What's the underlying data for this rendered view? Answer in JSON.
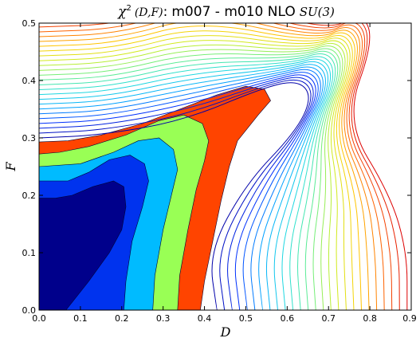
{
  "chart_data": {
    "type": "contour",
    "title": {
      "chi": "χ",
      "sup": "2",
      "args": "(D,F)",
      "colon": ":",
      "text": "m007 - m010 NLO",
      "group": "SU(3)"
    },
    "xlabel": "D",
    "ylabel": "F",
    "xlim": [
      0.0,
      0.9
    ],
    "ylim": [
      0.0,
      0.5
    ],
    "xticks": [
      "0.0",
      "0.1",
      "0.2",
      "0.3",
      "0.4",
      "0.5",
      "0.6",
      "0.7",
      "0.8",
      "0.9"
    ],
    "yticks": [
      "0.0",
      "0.1",
      "0.2",
      "0.3",
      "0.4",
      "0.5"
    ],
    "filled_bands_colors": [
      "#00008b",
      "#0033ee",
      "#00bbff",
      "#99ff55",
      "#ff4400"
    ],
    "contour_line_colormap": [
      "#0000aa",
      "#0033ff",
      "#00aaff",
      "#22dddd",
      "#66ee88",
      "#ccee22",
      "#ffcc00",
      "#ff6600",
      "#dd0000"
    ],
    "grid": false,
    "legend": "none"
  }
}
